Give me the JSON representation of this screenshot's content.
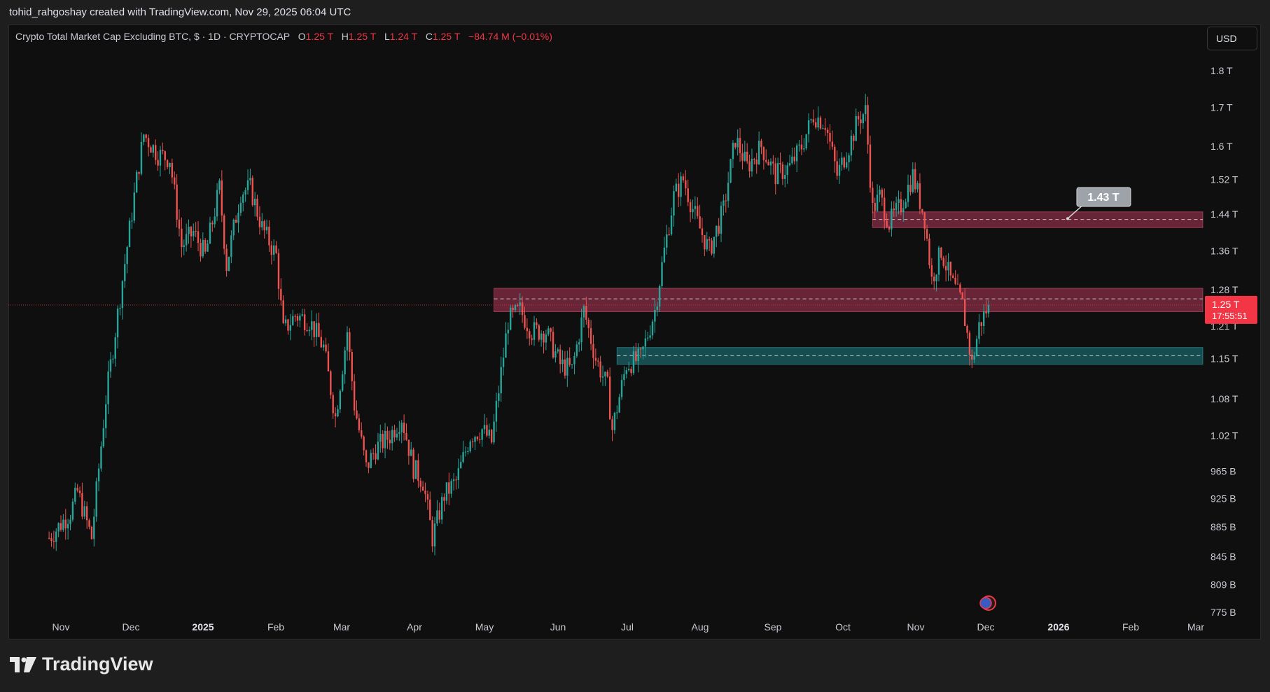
{
  "credit": "tohid_rahgoshay created with TradingView.com, Nov 29, 2025 06:04 UTC",
  "legend": {
    "symbol": "Crypto Total Market Cap Excluding BTC, $ · 1D · CRYPTOCAP",
    "o_label": "O",
    "o_value": "1.25 T",
    "h_label": "H",
    "h_value": "1.25 T",
    "l_label": "L",
    "l_value": "1.24 T",
    "c_label": "C",
    "c_value": "1.25 T",
    "change": "−84.74 M (−0.01%)"
  },
  "currency_button": "USD",
  "brand": "TradingView",
  "colors": {
    "up": "#26a69a",
    "down": "#ef5350",
    "resistance_zone": "#b2385a",
    "support_zone": "#1f7f86",
    "price_badge": "#f23645"
  },
  "chart_data": {
    "type": "candlestick",
    "title": "Crypto Total Market Cap Excluding BTC",
    "interval": "1D",
    "ylabel": "USD",
    "y_scale": "log",
    "ylim": [
      0.775,
      1.8
    ],
    "y_ticks": [
      "1.8 T",
      "1.7 T",
      "1.6 T",
      "1.52 T",
      "1.44 T",
      "1.36 T",
      "1.28 T",
      "1.21 T",
      "1.15 T",
      "1.08 T",
      "1.02 T",
      "965 B",
      "925 B",
      "885 B",
      "845 B",
      "809 B",
      "775 B"
    ],
    "y_tick_values": [
      1.8,
      1.7,
      1.6,
      1.52,
      1.44,
      1.36,
      1.28,
      1.21,
      1.15,
      1.08,
      1.02,
      0.965,
      0.925,
      0.885,
      0.845,
      0.809,
      0.775
    ],
    "x_ticks": [
      "Nov",
      "Dec",
      "2025",
      "Feb",
      "Mar",
      "Apr",
      "May",
      "Jun",
      "Jul",
      "Aug",
      "Sep",
      "Oct",
      "Nov",
      "Dec",
      "2026",
      "Feb",
      "Mar"
    ],
    "x_ticks_bold": [
      "2025",
      "2026"
    ],
    "current_price": {
      "label": "1.25 T",
      "countdown": "17:55:51",
      "value": 1.25
    },
    "zones": [
      {
        "name": "resistance-upper",
        "from": 1.41,
        "to": 1.445,
        "start": "2025-10-10",
        "mid": 1.428
      },
      {
        "name": "resistance-lower",
        "from": 1.237,
        "to": 1.283,
        "start": "2025-05-03",
        "mid": 1.262
      },
      {
        "name": "support",
        "from": 1.14,
        "to": 1.17,
        "start": "2025-06-24",
        "mid": 1.155
      }
    ],
    "annotation": {
      "text": "1.43 T",
      "value": 1.43
    },
    "path": [
      [
        "2024-10-27",
        0.87
      ],
      [
        "2024-11-05",
        0.905
      ],
      [
        "2024-11-08",
        0.935
      ],
      [
        "2024-11-14",
        0.87
      ],
      [
        "2024-11-20",
        1.08
      ],
      [
        "2024-11-27",
        1.3
      ],
      [
        "2024-12-03",
        1.52
      ],
      [
        "2024-12-06",
        1.63
      ],
      [
        "2024-12-12",
        1.58
      ],
      [
        "2024-12-17",
        1.57
      ],
      [
        "2024-12-22",
        1.37
      ],
      [
        "2024-12-27",
        1.4
      ],
      [
        "2025-01-01",
        1.35
      ],
      [
        "2025-01-07",
        1.5
      ],
      [
        "2025-01-10",
        1.33
      ],
      [
        "2025-01-16",
        1.49
      ],
      [
        "2025-01-20",
        1.5
      ],
      [
        "2025-01-25",
        1.41
      ],
      [
        "2025-01-31",
        1.35
      ],
      [
        "2025-02-03",
        1.2
      ],
      [
        "2025-02-08",
        1.23
      ],
      [
        "2025-02-14",
        1.22
      ],
      [
        "2025-02-20",
        1.17
      ],
      [
        "2025-02-25",
        1.05
      ],
      [
        "2025-03-02",
        1.2
      ],
      [
        "2025-03-05",
        1.07
      ],
      [
        "2025-03-10",
        0.97
      ],
      [
        "2025-03-14",
        1.0
      ],
      [
        "2025-03-20",
        1.02
      ],
      [
        "2025-03-25",
        1.05
      ],
      [
        "2025-03-30",
        0.97
      ],
      [
        "2025-04-03",
        0.95
      ],
      [
        "2025-04-07",
        0.87
      ],
      [
        "2025-04-12",
        0.93
      ],
      [
        "2025-04-17",
        0.95
      ],
      [
        "2025-04-23",
        1.02
      ],
      [
        "2025-04-28",
        1.03
      ],
      [
        "2025-05-02",
        1.01
      ],
      [
        "2025-05-09",
        1.22
      ],
      [
        "2025-05-14",
        1.24
      ],
      [
        "2025-05-19",
        1.2
      ],
      [
        "2025-05-25",
        1.2
      ],
      [
        "2025-05-31",
        1.14
      ],
      [
        "2025-06-05",
        1.13
      ],
      [
        "2025-06-10",
        1.24
      ],
      [
        "2025-06-15",
        1.15
      ],
      [
        "2025-06-20",
        1.1
      ],
      [
        "2025-06-22",
        1.03
      ],
      [
        "2025-06-28",
        1.14
      ],
      [
        "2025-07-04",
        1.15
      ],
      [
        "2025-07-10",
        1.24
      ],
      [
        "2025-07-14",
        1.36
      ],
      [
        "2025-07-18",
        1.48
      ],
      [
        "2025-07-22",
        1.52
      ],
      [
        "2025-07-28",
        1.42
      ],
      [
        "2025-08-02",
        1.36
      ],
      [
        "2025-08-08",
        1.45
      ],
      [
        "2025-08-13",
        1.62
      ],
      [
        "2025-08-18",
        1.55
      ],
      [
        "2025-08-24",
        1.6
      ],
      [
        "2025-08-30",
        1.53
      ],
      [
        "2025-09-05",
        1.55
      ],
      [
        "2025-09-10",
        1.6
      ],
      [
        "2025-09-15",
        1.68
      ],
      [
        "2025-09-20",
        1.66
      ],
      [
        "2025-09-25",
        1.53
      ],
      [
        "2025-09-30",
        1.6
      ],
      [
        "2025-10-04",
        1.67
      ],
      [
        "2025-10-07",
        1.69
      ],
      [
        "2025-10-10",
        1.45
      ],
      [
        "2025-10-13",
        1.48
      ],
      [
        "2025-10-17",
        1.42
      ],
      [
        "2025-10-22",
        1.46
      ],
      [
        "2025-10-27",
        1.53
      ],
      [
        "2025-11-01",
        1.43
      ],
      [
        "2025-11-04",
        1.3
      ],
      [
        "2025-11-08",
        1.36
      ],
      [
        "2025-11-12",
        1.3
      ],
      [
        "2025-11-17",
        1.25
      ],
      [
        "2025-11-21",
        1.14
      ],
      [
        "2025-11-24",
        1.21
      ],
      [
        "2025-11-28",
        1.25
      ]
    ]
  }
}
